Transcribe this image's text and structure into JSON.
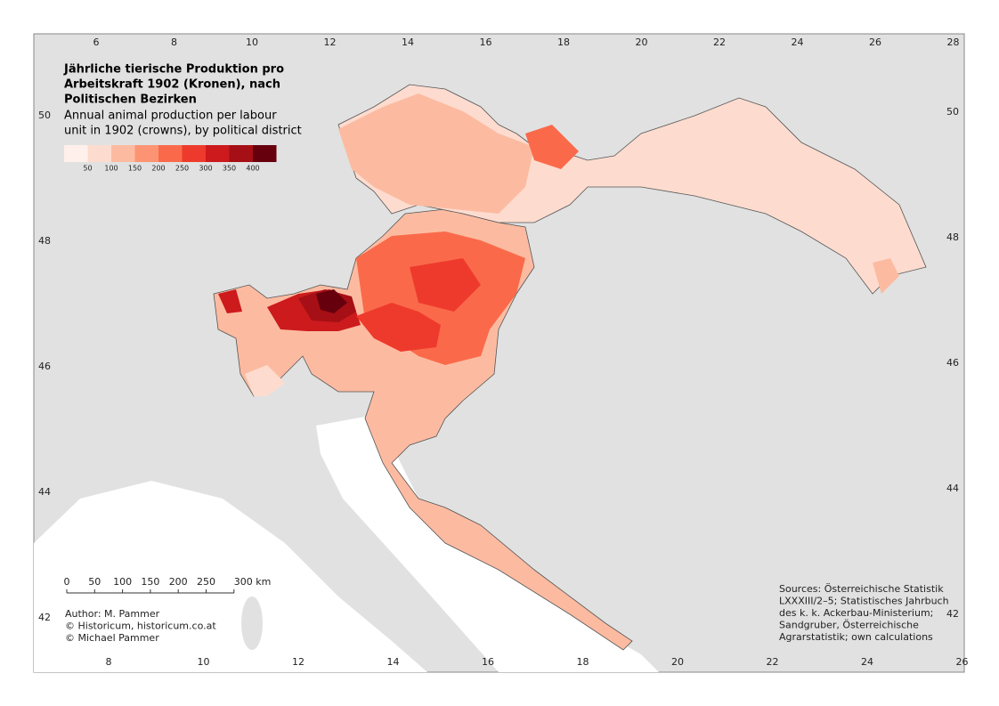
{
  "title_lines": [
    "Jährliche tierische Produktion pro",
    "Arbeitskraft 1902 (Kronen), nach",
    "Politischen Bezirken"
  ],
  "subtitle_lines": [
    "Annual animal production per labour",
    "unit in 1902 (crowns), by political district"
  ],
  "legend": {
    "colors": [
      "#fff0eb",
      "#fddccf",
      "#fcbba1",
      "#fc9474",
      "#fa6a4a",
      "#ee3a2c",
      "#cc1a1d",
      "#a50f15",
      "#67000d"
    ],
    "labels": [
      "50",
      "100",
      "150",
      "200",
      "250",
      "300",
      "350",
      "400"
    ]
  },
  "frame": {
    "top_ticks": [
      "6",
      "8",
      "10",
      "12",
      "14",
      "16",
      "18",
      "20",
      "22",
      "24",
      "26",
      "28"
    ],
    "bottom_ticks": [
      "8",
      "10",
      "12",
      "14",
      "16",
      "18",
      "20",
      "22",
      "24",
      "26"
    ],
    "left_ticks": [
      "50",
      "48",
      "46",
      "44",
      "42"
    ],
    "right_ticks": [
      "50",
      "48",
      "46",
      "44",
      "42"
    ]
  },
  "scale_bar": {
    "labels": [
      "0",
      "50",
      "100",
      "150",
      "200",
      "250",
      "300 km"
    ]
  },
  "author_lines": [
    "Author: M. Pammer",
    "© Historicum, historicum.co.at",
    "© Michael Pammer"
  ],
  "source_lines": [
    "Sources: Österreichische Statistik",
    "LXXXIII/2–5; Statistisches Jahrbuch",
    "des k. k. Ackerbau-Ministerium;",
    "Sandgruber, Österreichische",
    "Agrarstatistik; own calculations"
  ]
}
